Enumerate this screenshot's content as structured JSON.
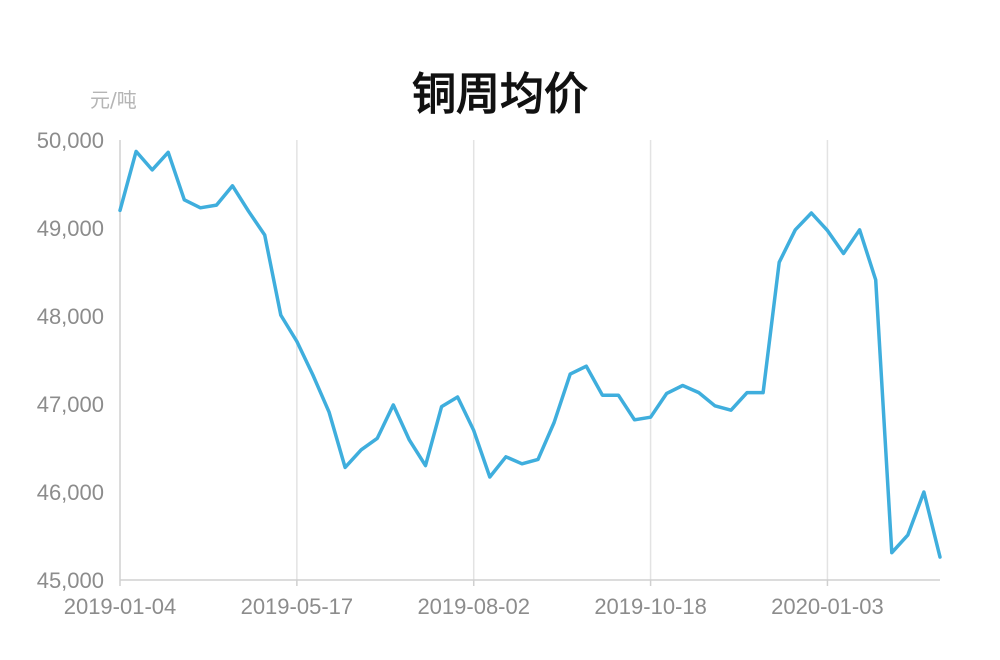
{
  "chart_data": {
    "type": "line",
    "title": "铜周均价",
    "ylabel": "元/吨",
    "xlabel": "",
    "ylim": [
      45000,
      50000
    ],
    "yticks": [
      "50,000",
      "49,000",
      "48,000",
      "47,000",
      "46,000",
      "45,000"
    ],
    "ytick_values": [
      50000,
      49000,
      48000,
      47000,
      46000,
      45000
    ],
    "xticks": [
      "2019-01-04",
      "2019-05-17",
      "2019-08-02",
      "2019-10-18",
      "2020-01-03"
    ],
    "xtick_index": [
      0,
      11,
      22,
      33,
      44
    ],
    "grid": "vertical",
    "line_color": "#3FAEDD",
    "series": [
      {
        "values": [
          49200,
          49870,
          49660,
          49860,
          49320,
          49230,
          49260,
          49480,
          49190,
          48920,
          48010,
          47710,
          47330,
          46910,
          46280,
          46480,
          46610,
          46990,
          46590,
          46300,
          46970,
          47080,
          46700,
          46170,
          46400,
          46320,
          46370,
          46790,
          47340,
          47430,
          47100,
          47100,
          46820,
          46850,
          47120,
          47210,
          47130,
          46980,
          46930,
          47130,
          47130,
          48610,
          48980,
          49170,
          48970,
          48710,
          48980,
          48410,
          45310,
          45510,
          46000,
          45260
        ]
      }
    ]
  }
}
